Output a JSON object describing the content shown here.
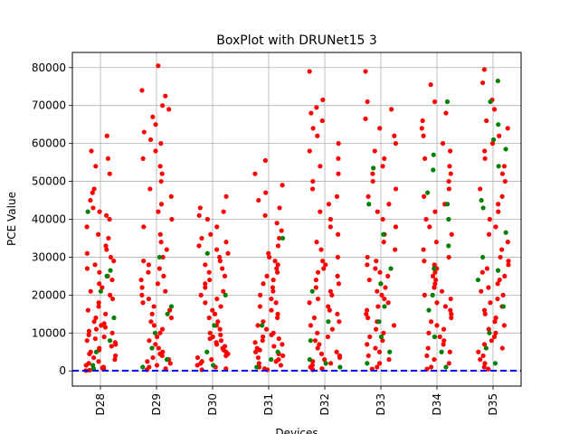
{
  "chart_data": {
    "type": "scatter",
    "title": "BoxPlot with DRUNet15 3",
    "xlabel": "Devices",
    "ylabel": "PCE Value",
    "categories": [
      "D28",
      "D29",
      "D30",
      "D31",
      "D32",
      "D33",
      "D34",
      "D35"
    ],
    "ylim": [
      -4000,
      84000
    ],
    "yticks": [
      0,
      10000,
      20000,
      30000,
      40000,
      50000,
      60000,
      70000,
      80000
    ],
    "ytick_labels": [
      "0",
      "10000",
      "20000",
      "30000",
      "40000",
      "50000",
      "60000",
      "70000",
      "80000"
    ],
    "grid": true,
    "threshold": {
      "value": 60,
      "color": "#0000ff",
      "style": "dashed"
    },
    "colors": {
      "primary": "#ff0000",
      "secondary": "#008000"
    },
    "series": [
      {
        "values_by_category": [
          [
            62000,
            58000,
            56000,
            54000,
            52000,
            48000,
            47000,
            45000,
            43000,
            42000,
            41000,
            40000,
            38000,
            36000,
            35000,
            33000,
            32000,
            31000,
            30000,
            29000,
            28000,
            27000,
            26000,
            25000,
            24000,
            23000,
            22000,
            21000,
            20000,
            19000,
            18000,
            17000,
            16000,
            15000,
            14000,
            13000,
            12500,
            12000,
            11500,
            11000,
            10500,
            10000,
            9500,
            9000,
            8500,
            8000,
            7500,
            7000,
            6500,
            6000,
            5500,
            5000,
            4500,
            4000,
            3500,
            3000,
            2500,
            2000,
            1500,
            1000,
            800,
            600,
            400,
            200,
            100
          ],
          [
            80500,
            74000,
            72500,
            70000,
            69000,
            67000,
            65000,
            63000,
            61000,
            60000,
            58000,
            56000,
            54000,
            52000,
            50000,
            48000,
            46000,
            44000,
            42000,
            40000,
            38000,
            36000,
            34000,
            32000,
            30000,
            29000,
            28000,
            27000,
            26000,
            25000,
            24000,
            23000,
            22000,
            21000,
            20000,
            19000,
            18000,
            17000,
            16000,
            15000,
            14000,
            13000,
            12000,
            11000,
            10000,
            9000,
            8000,
            7000,
            6000,
            5000,
            4500,
            4000,
            3500,
            3000,
            2500,
            2000,
            1500,
            1000,
            600,
            300
          ],
          [
            46000,
            43000,
            42000,
            41000,
            40000,
            38000,
            36000,
            35000,
            34000,
            33000,
            32000,
            31000,
            30000,
            29000,
            28000,
            27000,
            26000,
            25000,
            24000,
            23000,
            22000,
            21000,
            20000,
            19000,
            18000,
            17000,
            16000,
            15000,
            14000,
            13000,
            12000,
            11000,
            10000,
            9500,
            9000,
            8500,
            8000,
            7500,
            7000,
            6500,
            6000,
            5500,
            5000,
            4500,
            4000,
            3500,
            3000,
            2500,
            2000,
            1500,
            1000,
            600,
            300
          ],
          [
            55500,
            52000,
            49000,
            47000,
            45000,
            43000,
            41000,
            39000,
            37000,
            35000,
            33000,
            31000,
            30000,
            29000,
            28000,
            27000,
            26000,
            25000,
            24000,
            23000,
            22000,
            21000,
            20000,
            19000,
            18000,
            17000,
            16000,
            15000,
            14000,
            13000,
            12000,
            11000,
            10000,
            9500,
            9000,
            8500,
            8000,
            7500,
            7000,
            6500,
            6000,
            5500,
            5000,
            4500,
            4000,
            3500,
            3000,
            2500,
            2000,
            1500,
            1000,
            600,
            300
          ],
          [
            79000,
            71500,
            69500,
            68000,
            66000,
            64000,
            62000,
            60000,
            58000,
            56000,
            54000,
            52000,
            50000,
            48000,
            46000,
            44000,
            42000,
            40000,
            38000,
            36000,
            34000,
            32000,
            30000,
            29000,
            28000,
            27000,
            26000,
            25000,
            24000,
            23000,
            22000,
            21000,
            20000,
            19000,
            18000,
            17000,
            16000,
            15000,
            14000,
            13000,
            12000,
            11000,
            10000,
            9000,
            8000,
            7000,
            6000,
            5000,
            4500,
            4000,
            3500,
            3000,
            2500,
            2000,
            1500,
            1000,
            600,
            300
          ],
          [
            79000,
            71000,
            69000,
            66500,
            64000,
            62000,
            60000,
            58000,
            56000,
            54000,
            52000,
            50000,
            48000,
            46000,
            44000,
            42000,
            40000,
            38000,
            36000,
            34000,
            32000,
            30000,
            29000,
            28000,
            27000,
            26000,
            25000,
            24000,
            23000,
            22000,
            21000,
            20000,
            19000,
            18000,
            17000,
            16000,
            15000,
            14000,
            13000,
            12000,
            11000,
            10000,
            9000,
            8000,
            7000,
            6000,
            5000,
            4000,
            3000,
            2000,
            1000,
            500
          ],
          [
            75500,
            71000,
            68000,
            66000,
            64000,
            62000,
            60000,
            58000,
            56000,
            54000,
            52000,
            50000,
            48000,
            46000,
            44000,
            42000,
            40000,
            38000,
            36000,
            34000,
            32000,
            30000,
            29000,
            28000,
            27000,
            26000,
            25000,
            24000,
            23000,
            22000,
            21000,
            20000,
            19000,
            18000,
            17000,
            16000,
            15000,
            14000,
            13000,
            12000,
            11000,
            10000,
            9000,
            8000,
            7000,
            6000,
            5000,
            4000,
            3000,
            2000,
            1000,
            500
          ],
          [
            79500,
            76000,
            71500,
            69000,
            66000,
            64000,
            62000,
            60000,
            58000,
            56000,
            54000,
            52000,
            50000,
            48000,
            46000,
            44000,
            42000,
            40000,
            38000,
            36000,
            34000,
            32000,
            30000,
            29000,
            28000,
            27000,
            26000,
            25000,
            24000,
            23000,
            22000,
            21000,
            20000,
            19000,
            18000,
            17000,
            16000,
            15000,
            14000,
            13000,
            12000,
            11000,
            10000,
            9000,
            8000,
            7000,
            6000,
            5000,
            4000,
            3000,
            2000,
            1000,
            500
          ]
        ],
        "color": "#ff0000"
      },
      {
        "values_by_category": [
          [
            42000,
            26500,
            25000,
            21000,
            14000,
            8000,
            5000,
            1500,
            500
          ],
          [
            30000,
            17000,
            15000,
            10000,
            6000,
            3000,
            1000
          ],
          [
            31000,
            20000,
            12000,
            5000,
            1500
          ],
          [
            35000,
            12000,
            5000,
            3000,
            1000
          ],
          [
            21000,
            13000,
            8000,
            3000,
            2000,
            1000
          ],
          [
            53500,
            44000,
            36000,
            27000,
            23000,
            17000,
            13000,
            9000,
            5000,
            2000
          ],
          [
            71000,
            57000,
            53000,
            47000,
            44000,
            40000,
            33000,
            27000,
            20000,
            16000,
            9000,
            5000,
            1000
          ],
          [
            76500,
            71000,
            65000,
            61000,
            58500,
            54000,
            45000,
            43000,
            36500,
            30000,
            26500,
            24000,
            17000,
            10000,
            6000,
            2000
          ]
        ],
        "color": "#008000"
      }
    ]
  }
}
